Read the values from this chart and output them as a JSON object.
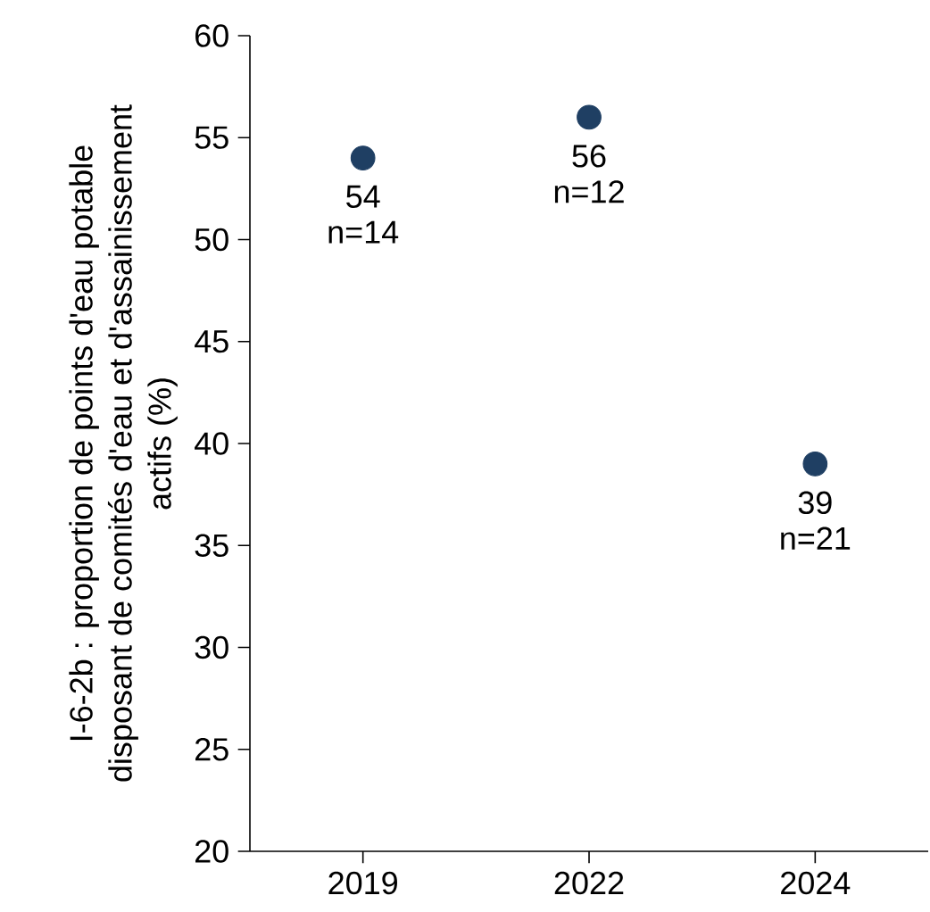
{
  "chart_data": {
    "type": "scatter",
    "categories": [
      "2019",
      "2022",
      "2024"
    ],
    "values": [
      54,
      56,
      39
    ],
    "value_labels": [
      "54",
      "56",
      "39"
    ],
    "color": "#1f3f63",
    "marker": "circle",
    "ylabel": "I-6-2b : proportion de points d'eau potable disposant de comités d'eau et d'assainissement actifs (%)",
    "ylim": [
      20,
      60
    ],
    "yticks": [
      20,
      25,
      30,
      35,
      40,
      45,
      50,
      55,
      60
    ],
    "annotations": [
      {
        "text": "n=14",
        "x": "2019",
        "y": 54
      },
      {
        "text": "n=12",
        "x": "2022",
        "y": 56
      },
      {
        "text": "n=21",
        "x": "2024",
        "y": 39
      }
    ]
  }
}
